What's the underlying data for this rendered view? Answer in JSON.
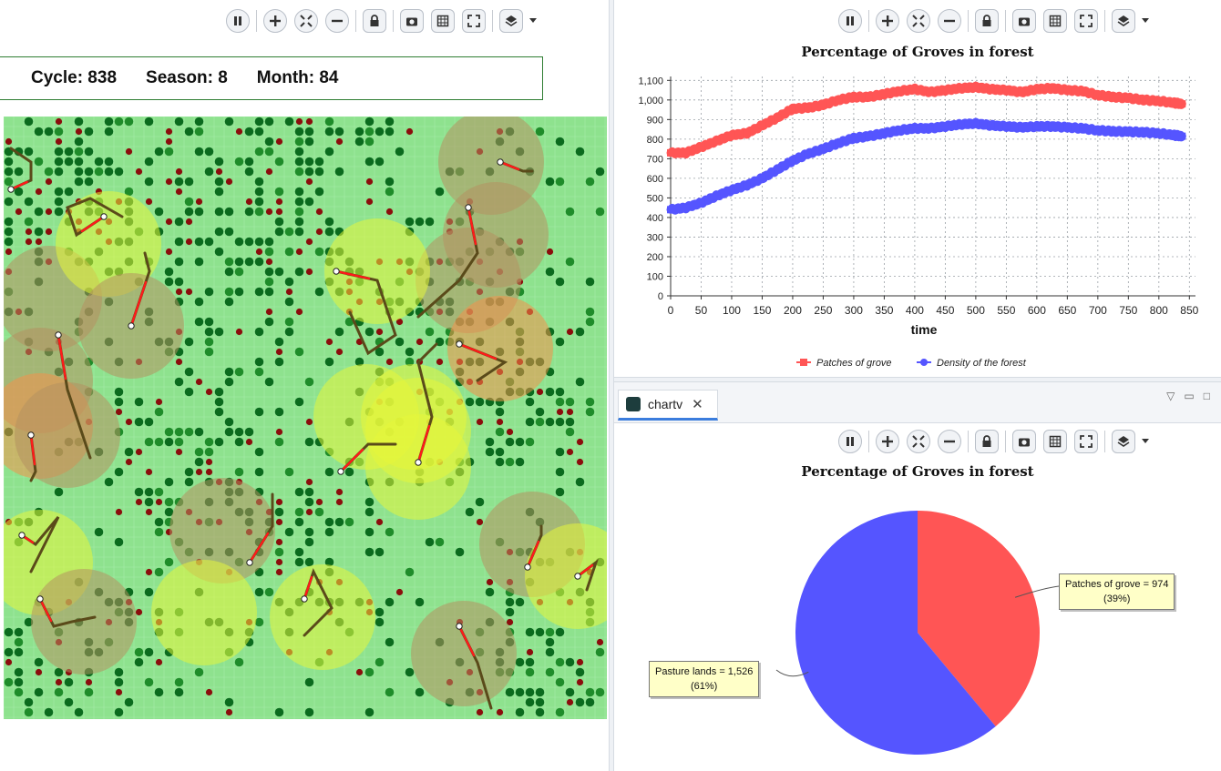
{
  "simulation": {
    "cycle_label": "Cycle: 838",
    "season_label": "Season: 8",
    "month_label": "Month: 84",
    "colors": {
      "pasture": "#8ee28e",
      "grove_dark": "#0b6b1e",
      "grove_bright": "#1f8c2a",
      "burnt": "#8b0d0d",
      "aura_brown": "#b49160",
      "aura_yellow": "#e6f53a",
      "aura_orange": "#f4914a",
      "path_dark": "#5a4a1a",
      "path_red": "#ff1a1a"
    }
  },
  "toolbar": {
    "icons": [
      "pause-icon",
      "zoom-in-icon",
      "fit-view-icon",
      "zoom-out-icon",
      "lock-icon",
      "camera-icon",
      "grid-icon",
      "fullscreen-icon",
      "layers-icon",
      "chevron-down-icon"
    ]
  },
  "line_chart": {
    "title": "Percentage of Groves in forest",
    "chart_data": {
      "type": "line",
      "title": "Percentage of Groves in forest",
      "xlabel": "time",
      "ylabel": "",
      "xlim": [
        0,
        860
      ],
      "ylim": [
        0,
        1120
      ],
      "x_ticks": [
        "0",
        "50",
        "100",
        "150",
        "200",
        "250",
        "300",
        "350",
        "400",
        "450",
        "500",
        "550",
        "600",
        "650",
        "700",
        "750",
        "800",
        "850"
      ],
      "y_ticks": [
        "0",
        "100",
        "200",
        "300",
        "400",
        "500",
        "600",
        "700",
        "800",
        "900",
        "1,000",
        "1,100"
      ],
      "grid": true,
      "legend_position": "bottom",
      "series": [
        {
          "name": "Patches of grove",
          "color": "#ff5555",
          "x": [
            0,
            25,
            50,
            75,
            100,
            125,
            150,
            175,
            200,
            225,
            250,
            275,
            300,
            325,
            350,
            375,
            400,
            425,
            450,
            475,
            500,
            525,
            550,
            575,
            600,
            625,
            650,
            675,
            700,
            725,
            750,
            775,
            800,
            825,
            838
          ],
          "y": [
            730,
            730,
            760,
            790,
            820,
            830,
            870,
            910,
            955,
            960,
            975,
            1000,
            1015,
            1015,
            1030,
            1045,
            1055,
            1040,
            1050,
            1060,
            1065,
            1055,
            1050,
            1040,
            1055,
            1060,
            1050,
            1045,
            1025,
            1015,
            1010,
            1000,
            995,
            985,
            980
          ]
        },
        {
          "name": "Density of the forest",
          "color": "#5555ff",
          "x": [
            0,
            25,
            50,
            75,
            100,
            125,
            150,
            175,
            200,
            225,
            250,
            275,
            300,
            325,
            350,
            375,
            400,
            425,
            450,
            475,
            500,
            525,
            550,
            575,
            600,
            625,
            650,
            675,
            700,
            725,
            750,
            775,
            800,
            825,
            838
          ],
          "y": [
            440,
            450,
            475,
            510,
            540,
            565,
            600,
            645,
            690,
            725,
            750,
            780,
            805,
            815,
            830,
            845,
            855,
            855,
            865,
            875,
            880,
            870,
            865,
            860,
            865,
            865,
            860,
            855,
            845,
            840,
            838,
            835,
            830,
            820,
            815
          ]
        }
      ]
    }
  },
  "tab": {
    "label": "chartv",
    "close_glyph": "✕"
  },
  "pie_chart": {
    "title": "Percentage of Groves in forest",
    "chart_data": {
      "type": "pie",
      "title": "Percentage of Groves in forest",
      "slices": [
        {
          "label": "Patches of grove",
          "value": 974,
          "percent": 39,
          "color": "#ff5555"
        },
        {
          "label": "Pasture lands",
          "value": 1526,
          "percent": 61,
          "color": "#5555ff"
        }
      ]
    },
    "callout_grove_line1": "Patches of grove = 974",
    "callout_grove_line2": "(39%)",
    "callout_pasture_line1": "Pasture lands = 1,526",
    "callout_pasture_line2": "(61%)"
  }
}
